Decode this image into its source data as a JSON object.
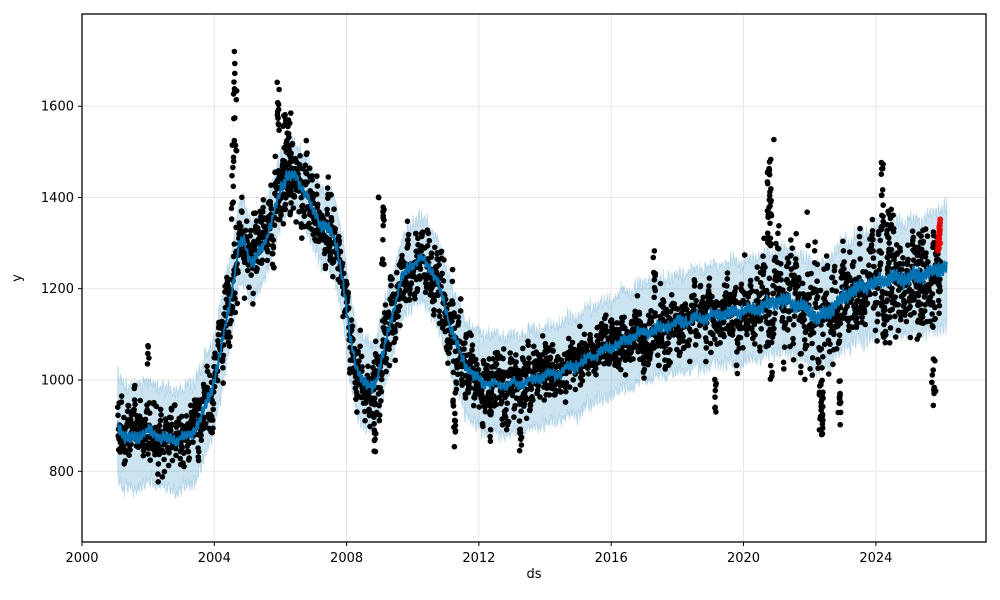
{
  "chart_data": {
    "type": "scatter",
    "subtype": "prophet-forecast-with-uncertainty-band",
    "title": "",
    "xlabel": "ds",
    "ylabel": "y",
    "xlim": [
      2000.0,
      2027.33
    ],
    "ylim": [
      645,
      1802
    ],
    "xticks": [
      2000,
      2004,
      2008,
      2012,
      2016,
      2020,
      2024
    ],
    "xtick_labels": [
      "2000",
      "2004",
      "2008",
      "2012",
      "2016",
      "2020",
      "2024"
    ],
    "yticks": [
      800,
      1000,
      1200,
      1400,
      1600
    ],
    "ytick_labels": [
      "800",
      "1000",
      "1200",
      "1400",
      "1600"
    ],
    "grid": true,
    "legend_position": "none",
    "colors": {
      "observations": "#000000",
      "forecast_line": "#0072B2",
      "uncertainty_band": "rgba(0,114,178,0.2)",
      "band_edge": "rgba(0,114,178,0.16)",
      "anomalies": "#e60000",
      "grid": "#e6e6e6",
      "spine": "#000000",
      "background": "#ffffff"
    },
    "series": [
      {
        "name": "observed",
        "style": "scatter",
        "color": "#000000"
      },
      {
        "name": "forecast",
        "style": "line",
        "color": "#0072B2"
      },
      {
        "name": "uncertainty",
        "style": "band",
        "color": "rgba(0,114,178,0.2)"
      },
      {
        "name": "anomalies",
        "style": "scatter",
        "color": "#e60000"
      }
    ],
    "seed": 42,
    "data_start": 2001.08,
    "data_end": 2025.95,
    "forecast_end": 2026.15,
    "trend_points": [
      [
        2001.08,
        905
      ],
      [
        2001.25,
        880
      ],
      [
        2001.45,
        868
      ],
      [
        2001.7,
        878
      ],
      [
        2001.95,
        885
      ],
      [
        2002.2,
        882
      ],
      [
        2002.5,
        872
      ],
      [
        2002.8,
        868
      ],
      [
        2003.1,
        872
      ],
      [
        2003.4,
        890
      ],
      [
        2003.65,
        925
      ],
      [
        2003.85,
        965
      ],
      [
        2004.0,
        1000
      ],
      [
        2004.2,
        1065
      ],
      [
        2004.4,
        1145
      ],
      [
        2004.6,
        1225
      ],
      [
        2004.75,
        1295
      ],
      [
        2004.9,
        1305
      ],
      [
        2005.05,
        1272
      ],
      [
        2005.2,
        1258
      ],
      [
        2005.4,
        1285
      ],
      [
        2005.6,
        1318
      ],
      [
        2005.8,
        1362
      ],
      [
        2006.0,
        1415
      ],
      [
        2006.2,
        1452
      ],
      [
        2006.4,
        1448
      ],
      [
        2006.6,
        1432
      ],
      [
        2006.8,
        1408
      ],
      [
        2007.0,
        1365
      ],
      [
        2007.2,
        1345
      ],
      [
        2007.45,
        1330
      ],
      [
        2007.7,
        1295
      ],
      [
        2007.9,
        1215
      ],
      [
        2008.1,
        1090
      ],
      [
        2008.3,
        1030
      ],
      [
        2008.5,
        995
      ],
      [
        2008.7,
        982
      ],
      [
        2008.9,
        1000
      ],
      [
        2009.1,
        1055
      ],
      [
        2009.35,
        1135
      ],
      [
        2009.6,
        1205
      ],
      [
        2009.85,
        1245
      ],
      [
        2010.1,
        1262
      ],
      [
        2010.3,
        1262
      ],
      [
        2010.5,
        1248
      ],
      [
        2010.7,
        1222
      ],
      [
        2010.9,
        1178
      ],
      [
        2011.1,
        1128
      ],
      [
        2011.35,
        1072
      ],
      [
        2011.6,
        1032
      ],
      [
        2011.85,
        1008
      ],
      [
        2012.1,
        996
      ],
      [
        2012.4,
        990
      ],
      [
        2012.8,
        988
      ],
      [
        2013.2,
        992
      ],
      [
        2013.6,
        1000
      ],
      [
        2014.0,
        1008
      ],
      [
        2014.5,
        1018
      ],
      [
        2015.0,
        1035
      ],
      [
        2015.5,
        1056
      ],
      [
        2016.0,
        1072
      ],
      [
        2016.5,
        1090
      ],
      [
        2017.0,
        1104
      ],
      [
        2017.5,
        1114
      ],
      [
        2018.0,
        1124
      ],
      [
        2018.5,
        1133
      ],
      [
        2019.0,
        1140
      ],
      [
        2019.5,
        1145
      ],
      [
        2020.0,
        1151
      ],
      [
        2020.5,
        1158
      ],
      [
        2021.0,
        1174
      ],
      [
        2021.35,
        1172
      ],
      [
        2021.7,
        1162
      ],
      [
        2022.0,
        1150
      ],
      [
        2022.25,
        1135
      ],
      [
        2022.5,
        1146
      ],
      [
        2022.75,
        1163
      ],
      [
        2023.0,
        1182
      ],
      [
        2023.3,
        1196
      ],
      [
        2023.7,
        1206
      ],
      [
        2024.1,
        1216
      ],
      [
        2024.5,
        1223
      ],
      [
        2024.9,
        1222
      ],
      [
        2025.2,
        1228
      ],
      [
        2025.5,
        1232
      ],
      [
        2025.8,
        1240
      ],
      [
        2026.15,
        1248
      ]
    ],
    "uncertainty_halfwidth_points": [
      [
        2001.08,
        112
      ],
      [
        2003.5,
        108
      ],
      [
        2004.6,
        92
      ],
      [
        2005.5,
        80
      ],
      [
        2006.3,
        72
      ],
      [
        2007.5,
        85
      ],
      [
        2008.5,
        95
      ],
      [
        2009.5,
        88
      ],
      [
        2010.5,
        92
      ],
      [
        2011.5,
        100
      ],
      [
        2012.5,
        108
      ],
      [
        2014.0,
        105
      ],
      [
        2016.0,
        105
      ],
      [
        2018.0,
        106
      ],
      [
        2020.0,
        110
      ],
      [
        2022.0,
        112
      ],
      [
        2023.5,
        115
      ],
      [
        2024.8,
        120
      ],
      [
        2026.15,
        130
      ]
    ],
    "seasonal_amp_points": [
      [
        2001.08,
        8
      ],
      [
        2010.0,
        8
      ],
      [
        2014.0,
        7
      ],
      [
        2019.0,
        9
      ],
      [
        2021.5,
        12
      ],
      [
        2026.15,
        13
      ]
    ],
    "scatter": {
      "step": 0.0075,
      "ar_coeff": 0.55,
      "volatility_points": [
        [
          2001.08,
          42
        ],
        [
          2002.2,
          38
        ],
        [
          2003.2,
          30
        ],
        [
          2004.1,
          40
        ],
        [
          2004.8,
          48
        ],
        [
          2005.5,
          42
        ],
        [
          2006.3,
          45
        ],
        [
          2007.2,
          38
        ],
        [
          2008.0,
          40
        ],
        [
          2008.8,
          42
        ],
        [
          2009.6,
          42
        ],
        [
          2010.4,
          40
        ],
        [
          2011.3,
          45
        ],
        [
          2012.2,
          42
        ],
        [
          2013.2,
          40
        ],
        [
          2014.2,
          30
        ],
        [
          2015.2,
          28
        ],
        [
          2016.2,
          32
        ],
        [
          2017.2,
          38
        ],
        [
          2018.2,
          36
        ],
        [
          2019.2,
          42
        ],
        [
          2020.2,
          45
        ],
        [
          2020.9,
          60
        ],
        [
          2021.6,
          55
        ],
        [
          2022.4,
          62
        ],
        [
          2023.2,
          48
        ],
        [
          2024.2,
          55
        ],
        [
          2025.0,
          55
        ],
        [
          2025.9,
          48
        ]
      ]
    },
    "scatter_events": [
      {
        "t": 2004.63,
        "dt": 0.1,
        "lo": 1500,
        "hi": 1745,
        "n": 16
      },
      {
        "t": 2004.55,
        "dt": 0.08,
        "lo": 1350,
        "hi": 1520,
        "n": 10
      },
      {
        "t": 2002.0,
        "dt": 0.05,
        "lo": 1020,
        "hi": 1085,
        "n": 5
      },
      {
        "t": 2005.93,
        "dt": 0.06,
        "lo": 1490,
        "hi": 1685,
        "n": 12
      },
      {
        "t": 2006.2,
        "dt": 0.25,
        "lo": 1430,
        "hi": 1590,
        "n": 30
      },
      {
        "t": 2008.85,
        "dt": 0.07,
        "lo": 835,
        "hi": 975,
        "n": 14
      },
      {
        "t": 2008.97,
        "dt": 0.02,
        "lo": 1385,
        "hi": 1405,
        "n": 2
      },
      {
        "t": 2009.1,
        "dt": 0.08,
        "lo": 1230,
        "hi": 1390,
        "n": 12
      },
      {
        "t": 2011.25,
        "dt": 0.09,
        "lo": 850,
        "hi": 975,
        "n": 14
      },
      {
        "t": 2012.35,
        "dt": 0.06,
        "lo": 865,
        "hi": 955,
        "n": 8
      },
      {
        "t": 2013.25,
        "dt": 0.08,
        "lo": 845,
        "hi": 950,
        "n": 10
      },
      {
        "t": 2017.3,
        "dt": 0.07,
        "lo": 1160,
        "hi": 1285,
        "n": 10
      },
      {
        "t": 2019.15,
        "dt": 0.05,
        "lo": 930,
        "hi": 1005,
        "n": 8
      },
      {
        "t": 2020.78,
        "dt": 0.13,
        "lo": 1290,
        "hi": 1485,
        "n": 34
      },
      {
        "t": 2020.92,
        "dt": 0.01,
        "lo": 1525,
        "hi": 1535,
        "n": 1
      },
      {
        "t": 2021.92,
        "dt": 0.01,
        "lo": 1365,
        "hi": 1375,
        "n": 1
      },
      {
        "t": 2022.35,
        "dt": 0.12,
        "lo": 878,
        "hi": 1010,
        "n": 26
      },
      {
        "t": 2022.9,
        "dt": 0.08,
        "lo": 898,
        "hi": 1000,
        "n": 14
      },
      {
        "t": 2024.2,
        "dt": 0.08,
        "lo": 1320,
        "hi": 1478,
        "n": 16
      },
      {
        "t": 2024.4,
        "dt": 0.15,
        "lo": 1230,
        "hi": 1380,
        "n": 22
      },
      {
        "t": 2025.35,
        "dt": 0.2,
        "lo": 1080,
        "hi": 1340,
        "n": 28
      },
      {
        "t": 2025.75,
        "dt": 0.12,
        "lo": 940,
        "hi": 1150,
        "n": 16
      },
      {
        "t": 2025.9,
        "dt": 0.06,
        "lo": 1150,
        "hi": 1300,
        "n": 10
      }
    ],
    "anomaly_points": [
      [
        2025.875,
        1283
      ],
      [
        2025.882,
        1291
      ],
      [
        2025.889,
        1298
      ],
      [
        2025.896,
        1304
      ],
      [
        2025.903,
        1311
      ],
      [
        2025.91,
        1317
      ],
      [
        2025.917,
        1324
      ],
      [
        2025.924,
        1331
      ],
      [
        2025.931,
        1338
      ],
      [
        2025.938,
        1345
      ],
      [
        2025.945,
        1352
      ],
      [
        2025.886,
        1306
      ],
      [
        2025.9,
        1296
      ],
      [
        2025.914,
        1310
      ],
      [
        2025.928,
        1320
      ],
      [
        2025.935,
        1328
      ],
      [
        2025.893,
        1315
      ],
      [
        2025.907,
        1289
      ],
      [
        2025.921,
        1336
      ],
      [
        2025.942,
        1300
      ]
    ]
  }
}
